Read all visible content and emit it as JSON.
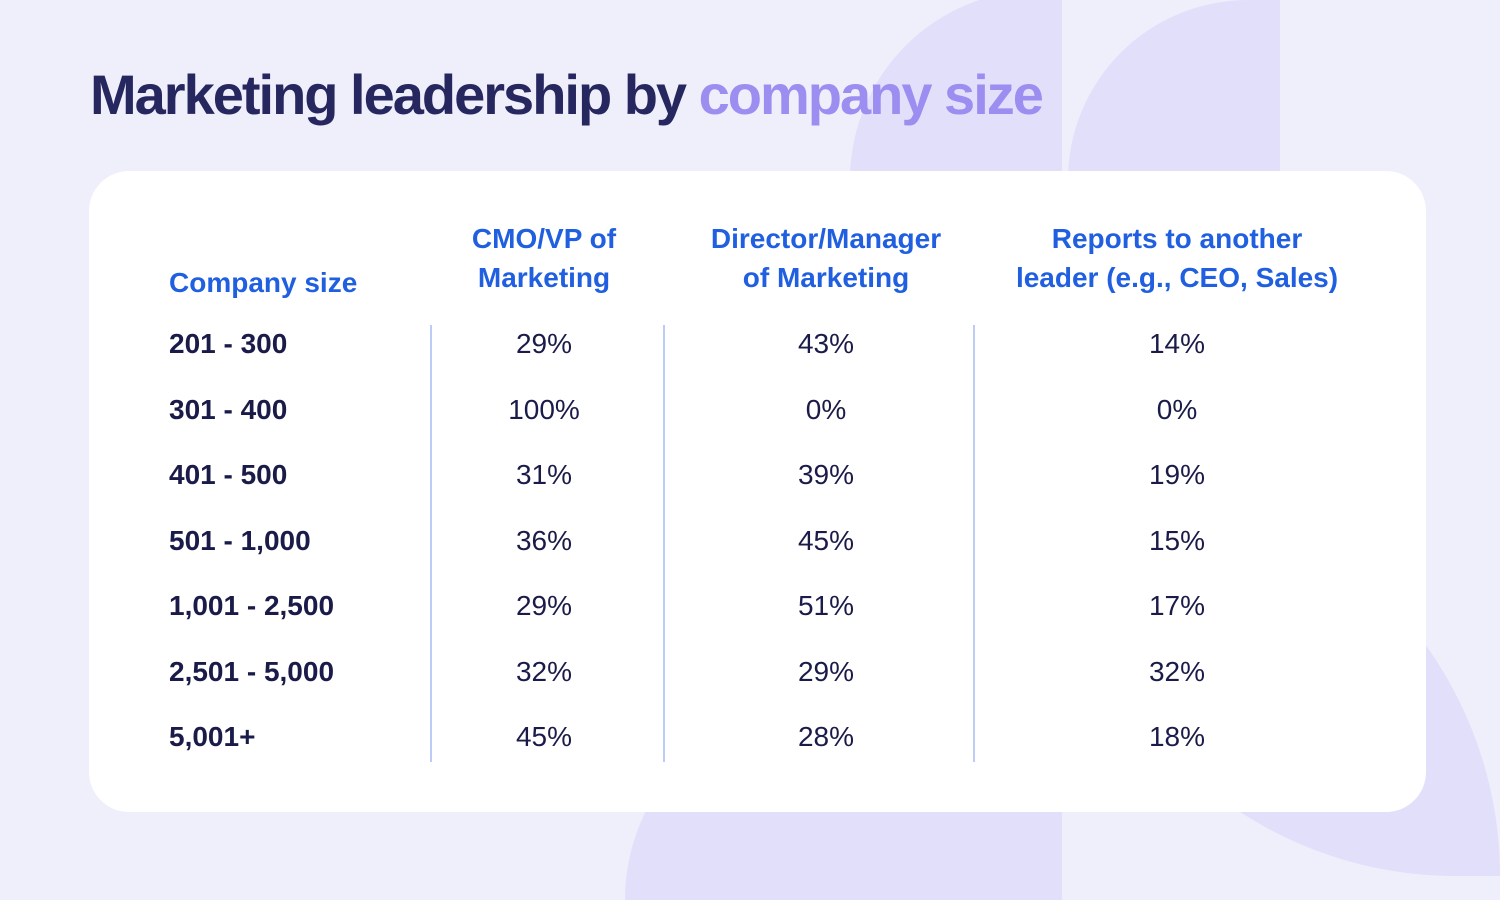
{
  "title": {
    "main": "Marketing leadership by",
    "accent": "company size"
  },
  "colors": {
    "title": "#27275f",
    "accent": "#9b8ef0",
    "header": "#1f5fe0",
    "text": "#1b1b4a",
    "background": "#efeefb"
  },
  "chart_data": {
    "type": "table",
    "columns": [
      "Company size",
      "CMO/VP of Marketing",
      "Director/Manager of Marketing",
      "Reports to another leader (e.g., CEO, Sales)"
    ],
    "header_lines": [
      [
        "Company size"
      ],
      [
        "CMO/VP of",
        "Marketing"
      ],
      [
        "Director/Manager",
        "of Marketing"
      ],
      [
        "Reports to another",
        "leader (e.g., CEO, Sales)"
      ]
    ],
    "rows": [
      [
        "201 - 300",
        "29%",
        "43%",
        "14%"
      ],
      [
        "301 - 400",
        "100%",
        "0%",
        "0%"
      ],
      [
        "401 - 500",
        "31%",
        "39%",
        "19%"
      ],
      [
        "501 - 1,000",
        "36%",
        "45%",
        "15%"
      ],
      [
        "1,001 - 2,500",
        "29%",
        "51%",
        "17%"
      ],
      [
        "2,501 - 5,000",
        "32%",
        "29%",
        "32%"
      ],
      [
        "5,001+",
        "45%",
        "28%",
        "18%"
      ]
    ]
  }
}
